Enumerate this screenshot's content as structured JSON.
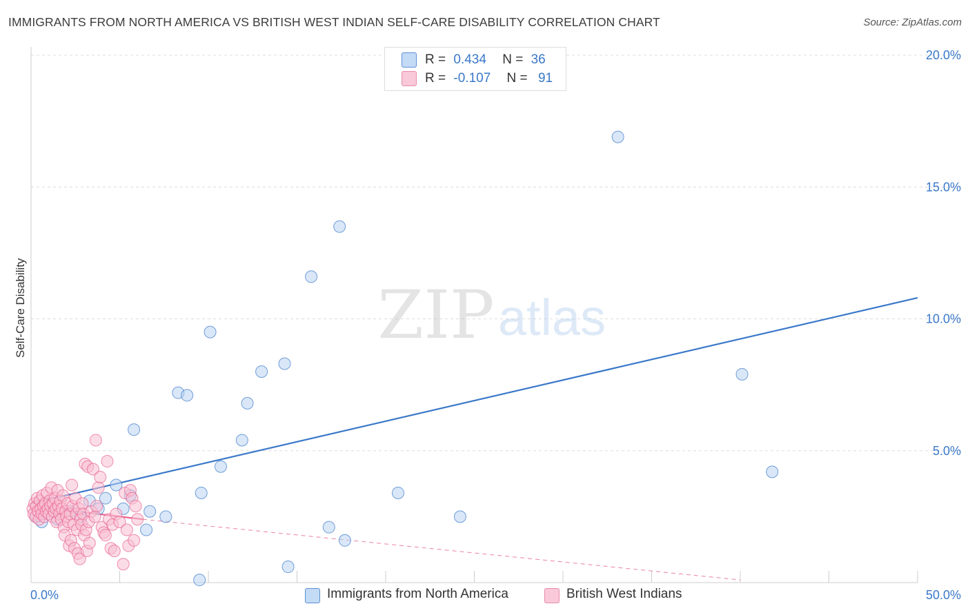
{
  "title": "IMMIGRANTS FROM NORTH AMERICA VS BRITISH WEST INDIAN SELF-CARE DISABILITY CORRELATION CHART",
  "source": "Source: ZipAtlas.com",
  "watermark": {
    "zip": "ZIP",
    "atlas": "atlas"
  },
  "legend": {
    "r_label": "R =",
    "n_label": "N =",
    "series1": {
      "r": "0.434",
      "n": "36"
    },
    "series2": {
      "r": "-0.107",
      "n": "91"
    }
  },
  "colors": {
    "blue": "#3a78c9",
    "blue_fill": "#b9d3f2",
    "pink": "#e8608e",
    "pink_fill": "#f7bfd2",
    "grid": "#dcdcdc"
  },
  "chart_data": {
    "type": "scatter",
    "title": "IMMIGRANTS FROM NORTH AMERICA VS BRITISH WEST INDIAN SELF-CARE DISABILITY CORRELATION CHART",
    "xlabel": "",
    "ylabel": "Self-Care Disability",
    "xlim": [
      0,
      50
    ],
    "ylim": [
      0,
      20
    ],
    "x_tick_labels": [
      "0.0%",
      "50.0%"
    ],
    "y_ticks": [
      5,
      10,
      15,
      20
    ],
    "y_tick_labels": [
      "5.0%",
      "10.0%",
      "15.0%",
      "20.0%"
    ],
    "series": [
      {
        "name": "Immigrants from North America",
        "color": "blue",
        "r": 0.434,
        "n": 36,
        "trend": {
          "x": [
            0,
            50
          ],
          "y": [
            3.0,
            10.8
          ],
          "style": "solid"
        },
        "points": [
          [
            0.3,
            2.5
          ],
          [
            0.6,
            2.3
          ],
          [
            1.0,
            2.6
          ],
          [
            1.5,
            2.4
          ],
          [
            2.2,
            2.7
          ],
          [
            2.8,
            2.5
          ],
          [
            3.3,
            3.1
          ],
          [
            3.8,
            2.8
          ],
          [
            4.2,
            3.2
          ],
          [
            4.8,
            3.7
          ],
          [
            5.2,
            2.8
          ],
          [
            5.6,
            3.3
          ],
          [
            5.8,
            5.8
          ],
          [
            6.5,
            2.0
          ],
          [
            6.7,
            2.7
          ],
          [
            7.6,
            2.5
          ],
          [
            8.3,
            7.2
          ],
          [
            8.8,
            7.1
          ],
          [
            9.5,
            0.1
          ],
          [
            9.6,
            3.4
          ],
          [
            10.1,
            9.5
          ],
          [
            10.7,
            4.4
          ],
          [
            11.9,
            5.4
          ],
          [
            12.2,
            6.8
          ],
          [
            13.0,
            8.0
          ],
          [
            14.3,
            8.3
          ],
          [
            14.5,
            0.6
          ],
          [
            15.8,
            11.6
          ],
          [
            16.8,
            2.1
          ],
          [
            17.4,
            13.5
          ],
          [
            17.7,
            1.6
          ],
          [
            20.7,
            3.4
          ],
          [
            24.2,
            2.5
          ],
          [
            33.1,
            16.9
          ],
          [
            40.1,
            7.9
          ],
          [
            41.8,
            4.2
          ]
        ]
      },
      {
        "name": "British West Indians",
        "color": "pink",
        "r": -0.107,
        "n": 91,
        "trend": {
          "x": [
            0,
            6.3
          ],
          "y": [
            2.9,
            2.4
          ],
          "style": "solid"
        },
        "trend_extension": {
          "x": [
            6.3,
            40.0
          ],
          "y": [
            2.4,
            0.1
          ],
          "style": "dashed"
        },
        "points": [
          [
            0.1,
            2.8
          ],
          [
            0.15,
            2.6
          ],
          [
            0.2,
            3.0
          ],
          [
            0.25,
            2.5
          ],
          [
            0.3,
            2.9
          ],
          [
            0.35,
            3.2
          ],
          [
            0.4,
            2.7
          ],
          [
            0.45,
            2.4
          ],
          [
            0.5,
            3.1
          ],
          [
            0.55,
            2.8
          ],
          [
            0.6,
            2.6
          ],
          [
            0.65,
            3.3
          ],
          [
            0.7,
            2.9
          ],
          [
            0.75,
            2.5
          ],
          [
            0.8,
            3.0
          ],
          [
            0.85,
            2.7
          ],
          [
            0.9,
            3.4
          ],
          [
            0.95,
            2.8
          ],
          [
            1.0,
            2.6
          ],
          [
            1.05,
            3.1
          ],
          [
            1.1,
            2.9
          ],
          [
            1.15,
            3.6
          ],
          [
            1.2,
            2.5
          ],
          [
            1.25,
            3.0
          ],
          [
            1.3,
            2.7
          ],
          [
            1.35,
            3.2
          ],
          [
            1.4,
            2.8
          ],
          [
            1.45,
            2.3
          ],
          [
            1.5,
            3.5
          ],
          [
            1.55,
            2.9
          ],
          [
            1.6,
            2.6
          ],
          [
            1.65,
            3.1
          ],
          [
            1.7,
            2.4
          ],
          [
            1.75,
            2.8
          ],
          [
            1.8,
            3.3
          ],
          [
            1.85,
            2.1
          ],
          [
            1.9,
            1.8
          ],
          [
            1.95,
            2.7
          ],
          [
            2.0,
            2.5
          ],
          [
            2.05,
            3.0
          ],
          [
            2.1,
            2.3
          ],
          [
            2.15,
            1.4
          ],
          [
            2.2,
            2.6
          ],
          [
            2.25,
            1.6
          ],
          [
            2.3,
            3.7
          ],
          [
            2.35,
            2.9
          ],
          [
            2.4,
            2.2
          ],
          [
            2.45,
            1.3
          ],
          [
            2.5,
            3.2
          ],
          [
            2.55,
            2.6
          ],
          [
            2.6,
            2.0
          ],
          [
            2.65,
            1.1
          ],
          [
            2.7,
            2.8
          ],
          [
            2.75,
            0.9
          ],
          [
            2.8,
            2.4
          ],
          [
            2.85,
            2.2
          ],
          [
            2.9,
            3.0
          ],
          [
            2.95,
            2.6
          ],
          [
            3.0,
            1.8
          ],
          [
            3.05,
            4.5
          ],
          [
            3.1,
            2.0
          ],
          [
            3.15,
            1.2
          ],
          [
            3.2,
            4.4
          ],
          [
            3.25,
            2.3
          ],
          [
            3.3,
            1.5
          ],
          [
            3.4,
            2.7
          ],
          [
            3.5,
            4.3
          ],
          [
            3.6,
            2.5
          ],
          [
            3.65,
            5.4
          ],
          [
            3.7,
            2.9
          ],
          [
            3.8,
            3.6
          ],
          [
            3.9,
            4.0
          ],
          [
            4.0,
            2.1
          ],
          [
            4.1,
            1.9
          ],
          [
            4.2,
            1.8
          ],
          [
            4.3,
            4.6
          ],
          [
            4.4,
            2.4
          ],
          [
            4.5,
            1.3
          ],
          [
            4.6,
            2.2
          ],
          [
            4.7,
            1.2
          ],
          [
            4.8,
            2.6
          ],
          [
            5.0,
            2.3
          ],
          [
            5.2,
            0.7
          ],
          [
            5.3,
            3.4
          ],
          [
            5.4,
            2.0
          ],
          [
            5.5,
            1.4
          ],
          [
            5.6,
            3.5
          ],
          [
            5.7,
            3.2
          ],
          [
            5.8,
            1.6
          ],
          [
            5.9,
            2.9
          ],
          [
            6.0,
            2.4
          ]
        ]
      }
    ]
  },
  "bottom_legend": {
    "series1": "Immigrants from North America",
    "series2": "British West Indians"
  }
}
